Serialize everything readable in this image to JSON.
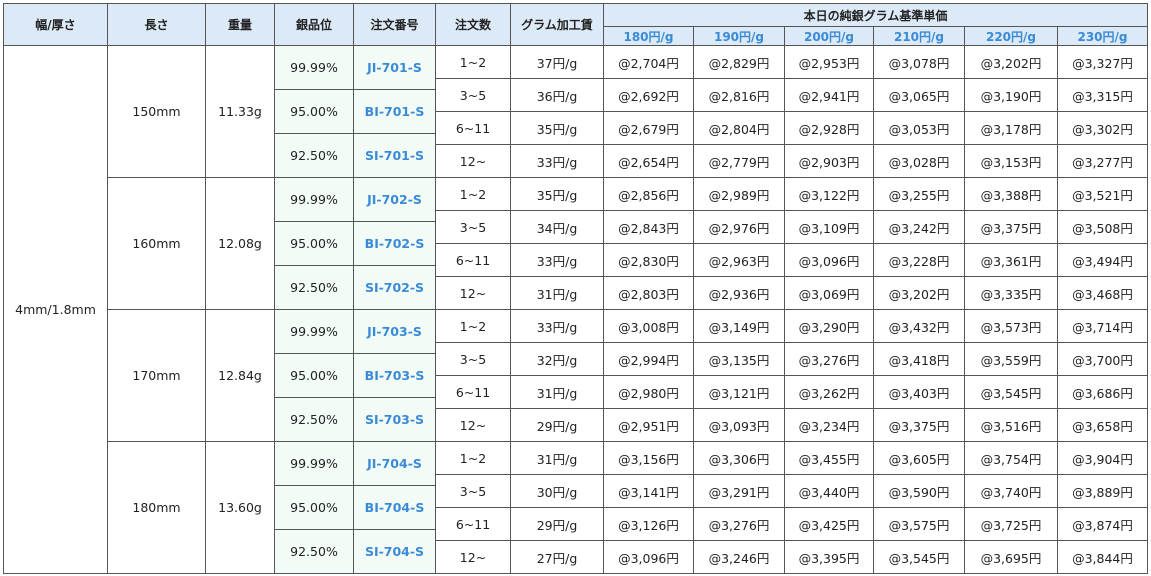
{
  "table": {
    "headers": [
      "幅/厚さ",
      "長さ",
      "重量",
      "銀品位",
      "注文番号",
      "注文数",
      "グラム加工賃"
    ],
    "price_header": "本日の純銀グラム基準単価",
    "price_columns": [
      "180円/g",
      "190円/g",
      "200円/g",
      "210円/g",
      "220円/g",
      "230円/g"
    ],
    "width": "4mm/1.8mm",
    "groups": [
      {
        "length": "150mm",
        "weight": "11.33g",
        "grades": [
          {
            "purity": "99.99%",
            "order_no": "JI-701-S"
          },
          {
            "purity": "95.00%",
            "order_no": "BI-701-S"
          },
          {
            "purity": "92.50%",
            "order_no": "SI-701-S"
          }
        ],
        "tiers": [
          {
            "quantity": "1~2",
            "fee": "37円/g",
            "prices": [
              "@2,704円",
              "@2,829円",
              "@2,953円",
              "@3,078円",
              "@3,202円",
              "@3,327円"
            ]
          },
          {
            "quantity": "3~5",
            "fee": "36円/g",
            "prices": [
              "@2,692円",
              "@2,816円",
              "@2,941円",
              "@3,065円",
              "@3,190円",
              "@3,315円"
            ]
          },
          {
            "quantity": "6~11",
            "fee": "35円/g",
            "prices": [
              "@2,679円",
              "@2,804円",
              "@2,928円",
              "@3,053円",
              "@3,178円",
              "@3,302円"
            ]
          },
          {
            "quantity": "12~",
            "fee": "33円/g",
            "prices": [
              "@2,654円",
              "@2,779円",
              "@2,903円",
              "@3,028円",
              "@3,153円",
              "@3,277円"
            ]
          }
        ]
      },
      {
        "length": "160mm",
        "weight": "12.08g",
        "grades": [
          {
            "purity": "99.99%",
            "order_no": "JI-702-S"
          },
          {
            "purity": "95.00%",
            "order_no": "BI-702-S"
          },
          {
            "purity": "92.50%",
            "order_no": "SI-702-S"
          }
        ],
        "tiers": [
          {
            "quantity": "1~2",
            "fee": "35円/g",
            "prices": [
              "@2,856円",
              "@2,989円",
              "@3,122円",
              "@3,255円",
              "@3,388円",
              "@3,521円"
            ]
          },
          {
            "quantity": "3~5",
            "fee": "34円/g",
            "prices": [
              "@2,843円",
              "@2,976円",
              "@3,109円",
              "@3,242円",
              "@3,375円",
              "@3,508円"
            ]
          },
          {
            "quantity": "6~11",
            "fee": "33円/g",
            "prices": [
              "@2,830円",
              "@2,963円",
              "@3,096円",
              "@3,228円",
              "@3,361円",
              "@3,494円"
            ]
          },
          {
            "quantity": "12~",
            "fee": "31円/g",
            "prices": [
              "@2,803円",
              "@2,936円",
              "@3,069円",
              "@3,202円",
              "@3,335円",
              "@3,468円"
            ]
          }
        ]
      },
      {
        "length": "170mm",
        "weight": "12.84g",
        "grades": [
          {
            "purity": "99.99%",
            "order_no": "JI-703-S"
          },
          {
            "purity": "95.00%",
            "order_no": "BI-703-S"
          },
          {
            "purity": "92.50%",
            "order_no": "SI-703-S"
          }
        ],
        "tiers": [
          {
            "quantity": "1~2",
            "fee": "33円/g",
            "prices": [
              "@3,008円",
              "@3,149円",
              "@3,290円",
              "@3,432円",
              "@3,573円",
              "@3,714円"
            ]
          },
          {
            "quantity": "3~5",
            "fee": "32円/g",
            "prices": [
              "@2,994円",
              "@3,135円",
              "@3,276円",
              "@3,418円",
              "@3,559円",
              "@3,700円"
            ]
          },
          {
            "quantity": "6~11",
            "fee": "31円/g",
            "prices": [
              "@2,980円",
              "@3,121円",
              "@3,262円",
              "@3,403円",
              "@3,545円",
              "@3,686円"
            ]
          },
          {
            "quantity": "12~",
            "fee": "29円/g",
            "prices": [
              "@2,951円",
              "@3,093円",
              "@3,234円",
              "@3,375円",
              "@3,516円",
              "@3,658円"
            ]
          }
        ]
      },
      {
        "length": "180mm",
        "weight": "13.60g",
        "grades": [
          {
            "purity": "99.99%",
            "order_no": "JI-704-S"
          },
          {
            "purity": "95.00%",
            "order_no": "BI-704-S"
          },
          {
            "purity": "92.50%",
            "order_no": "SI-704-S"
          }
        ],
        "tiers": [
          {
            "quantity": "1~2",
            "fee": "31円/g",
            "prices": [
              "@3,156円",
              "@3,306円",
              "@3,455円",
              "@3,605円",
              "@3,754円",
              "@3,904円"
            ]
          },
          {
            "quantity": "3~5",
            "fee": "30円/g",
            "prices": [
              "@3,141円",
              "@3,291円",
              "@3,440円",
              "@3,590円",
              "@3,740円",
              "@3,889円"
            ]
          },
          {
            "quantity": "6~11",
            "fee": "29円/g",
            "prices": [
              "@3,126円",
              "@3,276円",
              "@3,425円",
              "@3,575円",
              "@3,725円",
              "@3,874円"
            ]
          },
          {
            "quantity": "12~",
            "fee": "27円/g",
            "prices": [
              "@3,096円",
              "@3,246円",
              "@3,395円",
              "@3,545円",
              "@3,695円",
              "@3,844円"
            ]
          }
        ]
      }
    ]
  }
}
